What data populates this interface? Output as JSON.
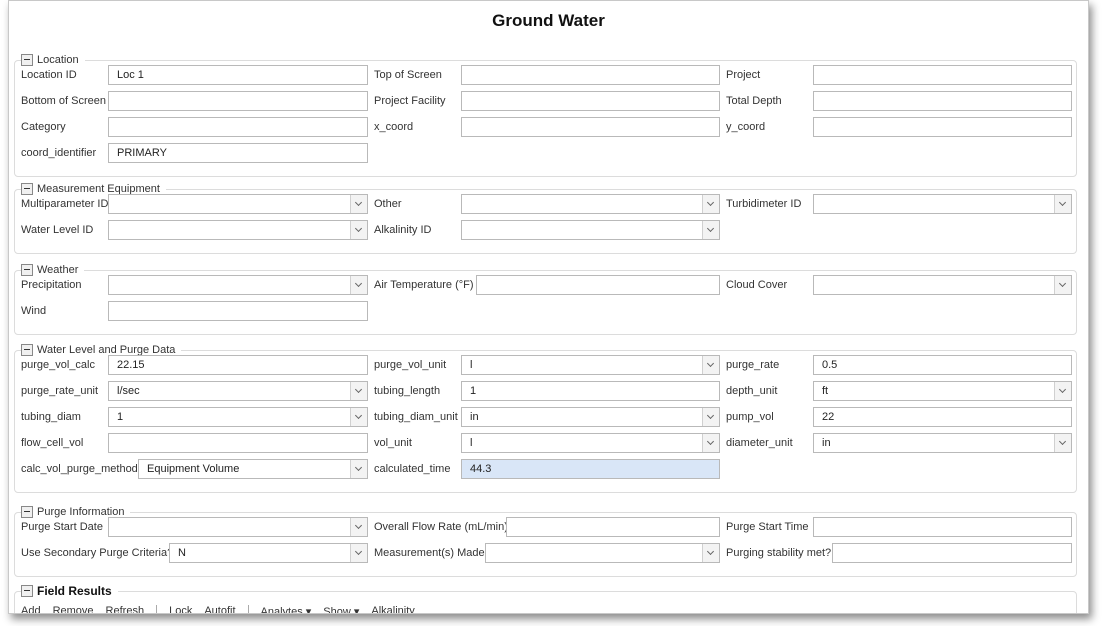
{
  "title": "Ground Water",
  "sections": [
    {
      "label": "Location",
      "rows": [
        [
          {
            "label": "Location ID",
            "value": "Loc 1",
            "type": "text"
          },
          {
            "label": "Top of Screen",
            "value": "",
            "type": "text"
          },
          {
            "label": "Project",
            "value": "",
            "type": "text"
          }
        ],
        [
          {
            "label": "Bottom of Screen",
            "value": "",
            "type": "text"
          },
          {
            "label": "Project Facility",
            "value": "",
            "type": "text"
          },
          {
            "label": "Total Depth",
            "value": "",
            "type": "text"
          }
        ],
        [
          {
            "label": "Category",
            "value": "",
            "type": "text"
          },
          {
            "label": "x_coord",
            "value": "",
            "type": "text"
          },
          {
            "label": "y_coord",
            "value": "",
            "type": "text"
          }
        ],
        [
          {
            "label": "coord_identifier",
            "value": "PRIMARY",
            "type": "text"
          }
        ]
      ]
    },
    {
      "label": "Measurement Equipment",
      "rows": [
        [
          {
            "label": "Multiparameter ID",
            "value": "",
            "type": "combo"
          },
          {
            "label": "Other",
            "value": "",
            "type": "combo"
          },
          {
            "label": "Turbidimeter ID",
            "value": "",
            "type": "combo"
          }
        ],
        [
          {
            "label": "Water Level ID",
            "value": "",
            "type": "combo"
          },
          {
            "label": "Alkalinity ID",
            "value": "",
            "type": "combo"
          }
        ]
      ]
    },
    {
      "label": "Weather",
      "rows": [
        [
          {
            "label": "Precipitation",
            "value": "",
            "type": "combo"
          },
          {
            "label": "Air Temperature (°F)",
            "value": "",
            "type": "text"
          },
          {
            "label": "Cloud Cover",
            "value": "",
            "type": "combo"
          }
        ],
        [
          {
            "label": "Wind",
            "value": "",
            "type": "text"
          }
        ]
      ]
    },
    {
      "label": "Water Level and Purge Data",
      "rows": [
        [
          {
            "label": "purge_vol_calc",
            "value": "22.15",
            "type": "text"
          },
          {
            "label": "purge_vol_unit",
            "value": "l",
            "type": "combo"
          },
          {
            "label": "purge_rate",
            "value": "0.5",
            "type": "text"
          }
        ],
        [
          {
            "label": "purge_rate_unit",
            "value": "l/sec",
            "type": "combo"
          },
          {
            "label": "tubing_length",
            "value": "1",
            "type": "text"
          },
          {
            "label": "depth_unit",
            "value": "ft",
            "type": "combo"
          }
        ],
        [
          {
            "label": "tubing_diam",
            "value": "1",
            "type": "combo"
          },
          {
            "label": "tubing_diam_unit",
            "value": "in",
            "type": "combo"
          },
          {
            "label": "pump_vol",
            "value": "22",
            "type": "text"
          }
        ],
        [
          {
            "label": "flow_cell_vol",
            "value": "",
            "type": "text"
          },
          {
            "label": "vol_unit",
            "value": "l",
            "type": "combo"
          },
          {
            "label": "diameter_unit",
            "value": "in",
            "type": "combo"
          }
        ],
        [
          {
            "label": "calc_vol_purge_method",
            "value": "Equipment Volume",
            "type": "combo"
          },
          {
            "label": "calculated_time",
            "value": "44.3",
            "type": "text",
            "focused": true
          }
        ]
      ]
    },
    {
      "label": "Purge Information",
      "rows": [
        [
          {
            "label": "Purge Start Date",
            "value": "",
            "type": "combo"
          },
          {
            "label": "Overall Flow Rate (mL/min)",
            "value": "",
            "type": "text"
          },
          {
            "label": "Purge Start Time",
            "value": "",
            "type": "text"
          }
        ],
        [
          {
            "label": "Use Secondary Purge Criteria?",
            "value": "N",
            "type": "combo"
          },
          {
            "label": "Measurement(s) Made",
            "value": "",
            "type": "combo"
          },
          {
            "label": "Purging stability met?",
            "value": "",
            "type": "text"
          }
        ]
      ]
    },
    {
      "label": "Field Results",
      "bold": true,
      "rows": []
    }
  ],
  "toolbar": {
    "groups": [
      [
        "Add",
        "Remove",
        "Refresh"
      ],
      [
        "Lock",
        "Autofit"
      ],
      [
        "Analytes ▾",
        "Show ▾",
        "Alkalinity"
      ]
    ]
  }
}
